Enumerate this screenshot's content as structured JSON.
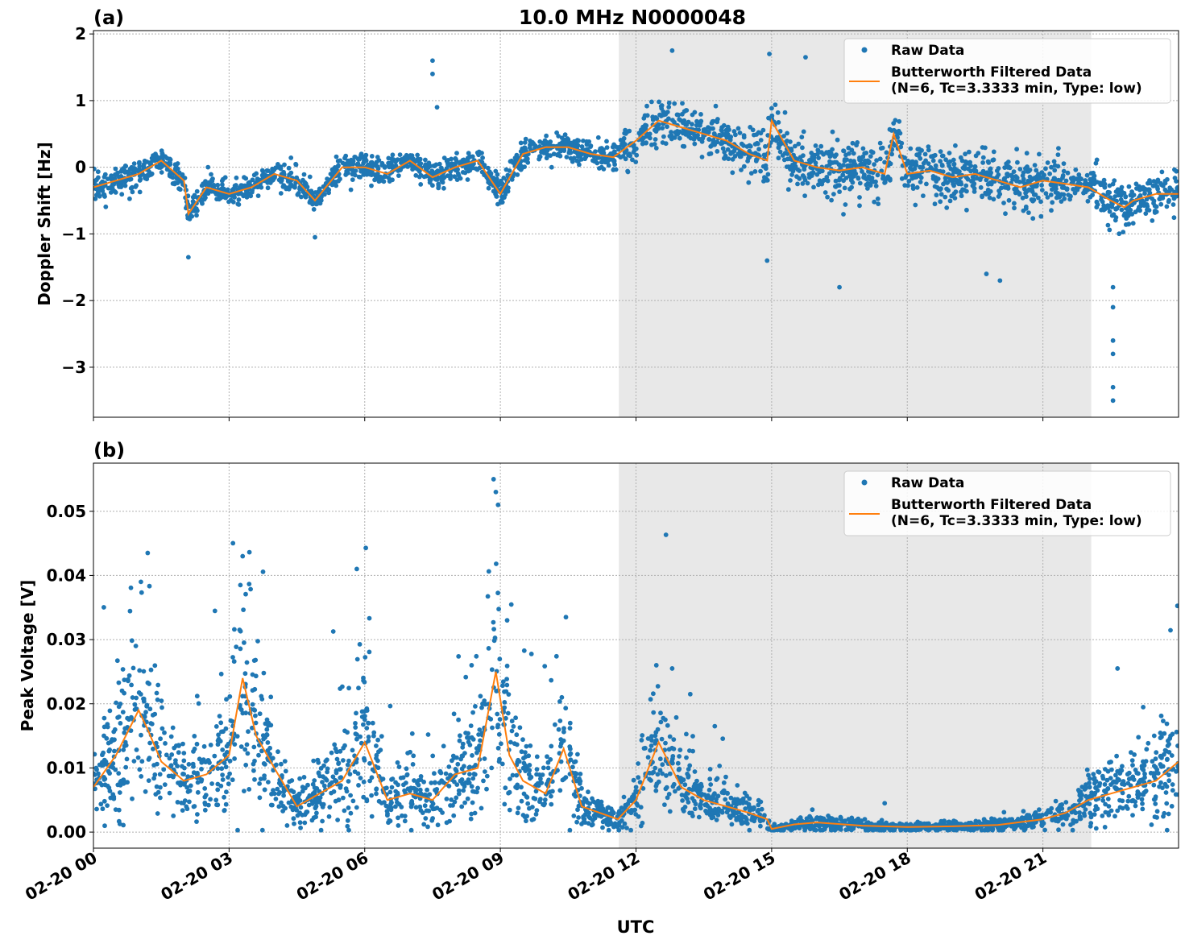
{
  "title": "10.0 MHz N0000048",
  "xlabel": "UTC",
  "x_tick_labels": [
    "02-20 00",
    "02-20 03",
    "02-20 06",
    "02-20 09",
    "02-20 12",
    "02-20 15",
    "02-20 18",
    "02-20 21"
  ],
  "colors": {
    "raw": "#1f77b4",
    "filtered": "#ff7f0e",
    "shade": "#e8e8e8",
    "grid": "#b0b0b0"
  },
  "chart_data": [
    {
      "type": "scatter",
      "panel_label": "(a)",
      "ylabel": "Doppler Shift [Hz]",
      "xlim": [
        0,
        24
      ],
      "ylim": [
        -3.75,
        2.05
      ],
      "yticks": [
        2,
        1,
        0,
        -1,
        -2,
        -3
      ],
      "ytick_labels": [
        "2",
        "1",
        "0",
        "−1",
        "−2",
        "−3"
      ],
      "xticks": [
        0,
        3,
        6,
        9,
        12,
        15,
        18,
        21
      ],
      "x_unit": "hours UTC on 02-20",
      "shaded_span": [
        11.62,
        22.07
      ],
      "grid": true,
      "legend_position": "upper-right",
      "legend": [
        "Raw Data",
        "Butterworth Filtered Data\n(N=6, Tc=3.3333 min, Type: low)"
      ],
      "series": [
        {
          "name": "Butterworth Filtered Data (N=6, Tc=3.3333 min, Type: low)",
          "x": [
            0,
            0.5,
            1.0,
            1.5,
            2.0,
            2.1,
            2.5,
            3.0,
            3.5,
            4.0,
            4.5,
            4.9,
            5.5,
            6.0,
            6.5,
            7.0,
            7.5,
            8.0,
            8.5,
            9.0,
            9.5,
            10.0,
            10.5,
            11.0,
            11.5,
            11.8,
            12.0,
            12.5,
            13.0,
            13.5,
            14.0,
            14.5,
            14.9,
            15.0,
            15.5,
            16.0,
            16.5,
            17.0,
            17.5,
            17.7,
            18.0,
            18.5,
            19.0,
            19.5,
            20.0,
            20.5,
            21.0,
            21.5,
            22.0,
            22.5,
            22.8,
            23.0,
            23.5,
            24.0
          ],
          "y": [
            -0.3,
            -0.2,
            -0.1,
            0.1,
            -0.2,
            -0.7,
            -0.3,
            -0.4,
            -0.3,
            -0.1,
            -0.2,
            -0.5,
            0.0,
            0.0,
            -0.1,
            0.1,
            -0.15,
            0.0,
            0.1,
            -0.4,
            0.2,
            0.3,
            0.3,
            0.2,
            0.15,
            0.3,
            0.4,
            0.7,
            0.6,
            0.5,
            0.4,
            0.2,
            0.1,
            0.7,
            0.1,
            0.0,
            -0.05,
            0.0,
            -0.1,
            0.5,
            -0.1,
            -0.05,
            -0.15,
            -0.1,
            -0.2,
            -0.3,
            -0.2,
            -0.25,
            -0.3,
            -0.5,
            -0.6,
            -0.5,
            -0.4,
            -0.4
          ]
        },
        {
          "name": "Raw Data",
          "outliers": [
            [
              7.5,
              1.6
            ],
            [
              7.5,
              1.4
            ],
            [
              7.6,
              0.9
            ],
            [
              14.95,
              1.7
            ],
            [
              15.75,
              1.65
            ],
            [
              14.9,
              -1.4
            ],
            [
              16.5,
              -1.8
            ],
            [
              19.75,
              -1.6
            ],
            [
              20.05,
              -1.7
            ],
            [
              22.55,
              -1.8
            ],
            [
              22.55,
              -2.1
            ],
            [
              22.55,
              -2.6
            ],
            [
              22.55,
              -2.8
            ],
            [
              22.55,
              -3.3
            ],
            [
              22.55,
              -3.5
            ],
            [
              12.8,
              1.75
            ],
            [
              2.1,
              -1.35
            ],
            [
              4.9,
              -1.05
            ]
          ]
        }
      ]
    },
    {
      "type": "scatter",
      "panel_label": "(b)",
      "ylabel": "Peak Voltage [V]",
      "xlim": [
        0,
        24
      ],
      "ylim": [
        -0.0025,
        0.0575
      ],
      "yticks": [
        0.05,
        0.04,
        0.03,
        0.02,
        0.01,
        0.0
      ],
      "ytick_labels": [
        "0.05",
        "0.04",
        "0.03",
        "0.02",
        "0.01",
        "0.00"
      ],
      "xticks": [
        0,
        3,
        6,
        9,
        12,
        15,
        18,
        21
      ],
      "x_unit": "hours UTC on 02-20",
      "shaded_span": [
        11.62,
        22.07
      ],
      "grid": true,
      "legend_position": "upper-right",
      "legend": [
        "Raw Data",
        "Butterworth Filtered Data\n(N=6, Tc=3.3333 min, Type: low)"
      ],
      "series": [
        {
          "name": "Butterworth Filtered Data (N=6, Tc=3.3333 min, Type: low)",
          "x": [
            0,
            0.5,
            1.0,
            1.2,
            1.5,
            2.0,
            2.5,
            3.0,
            3.3,
            3.6,
            4.0,
            4.5,
            5.0,
            5.5,
            6.0,
            6.5,
            7.0,
            7.5,
            8.0,
            8.5,
            8.9,
            9.2,
            9.5,
            10.0,
            10.4,
            10.8,
            11.2,
            11.6,
            12.0,
            12.5,
            13.0,
            13.5,
            14.0,
            14.5,
            14.9,
            15.0,
            15.5,
            16.0,
            17.0,
            18.0,
            19.0,
            20.0,
            21.0,
            21.5,
            22.0,
            22.5,
            23.0,
            23.5,
            24.0
          ],
          "y": [
            0.007,
            0.012,
            0.019,
            0.016,
            0.011,
            0.008,
            0.009,
            0.012,
            0.024,
            0.015,
            0.01,
            0.004,
            0.006,
            0.008,
            0.014,
            0.005,
            0.006,
            0.005,
            0.009,
            0.01,
            0.025,
            0.012,
            0.008,
            0.006,
            0.013,
            0.004,
            0.003,
            0.002,
            0.005,
            0.014,
            0.007,
            0.005,
            0.004,
            0.003,
            0.002,
            0.0005,
            0.0012,
            0.0015,
            0.001,
            0.0008,
            0.0009,
            0.0011,
            0.002,
            0.003,
            0.005,
            0.006,
            0.007,
            0.008,
            0.011
          ]
        },
        {
          "name": "Raw Data",
          "outliers": [
            [
              8.85,
              0.055
            ],
            [
              8.9,
              0.053
            ],
            [
              8.95,
              0.051
            ],
            [
              1.2,
              0.0435
            ],
            [
              3.3,
              0.043
            ],
            [
              3.25,
              0.0385
            ],
            [
              1.05,
              0.039
            ],
            [
              10.45,
              0.0335
            ],
            [
              9.15,
              0.033
            ],
            [
              12.45,
              0.026
            ],
            [
              22.65,
              0.0255
            ],
            [
              12.8,
              0.0255
            ],
            [
              13.2,
              0.0215
            ],
            [
              15.9,
              0.0035
            ],
            [
              17.5,
              0.0045
            ]
          ]
        }
      ]
    }
  ]
}
